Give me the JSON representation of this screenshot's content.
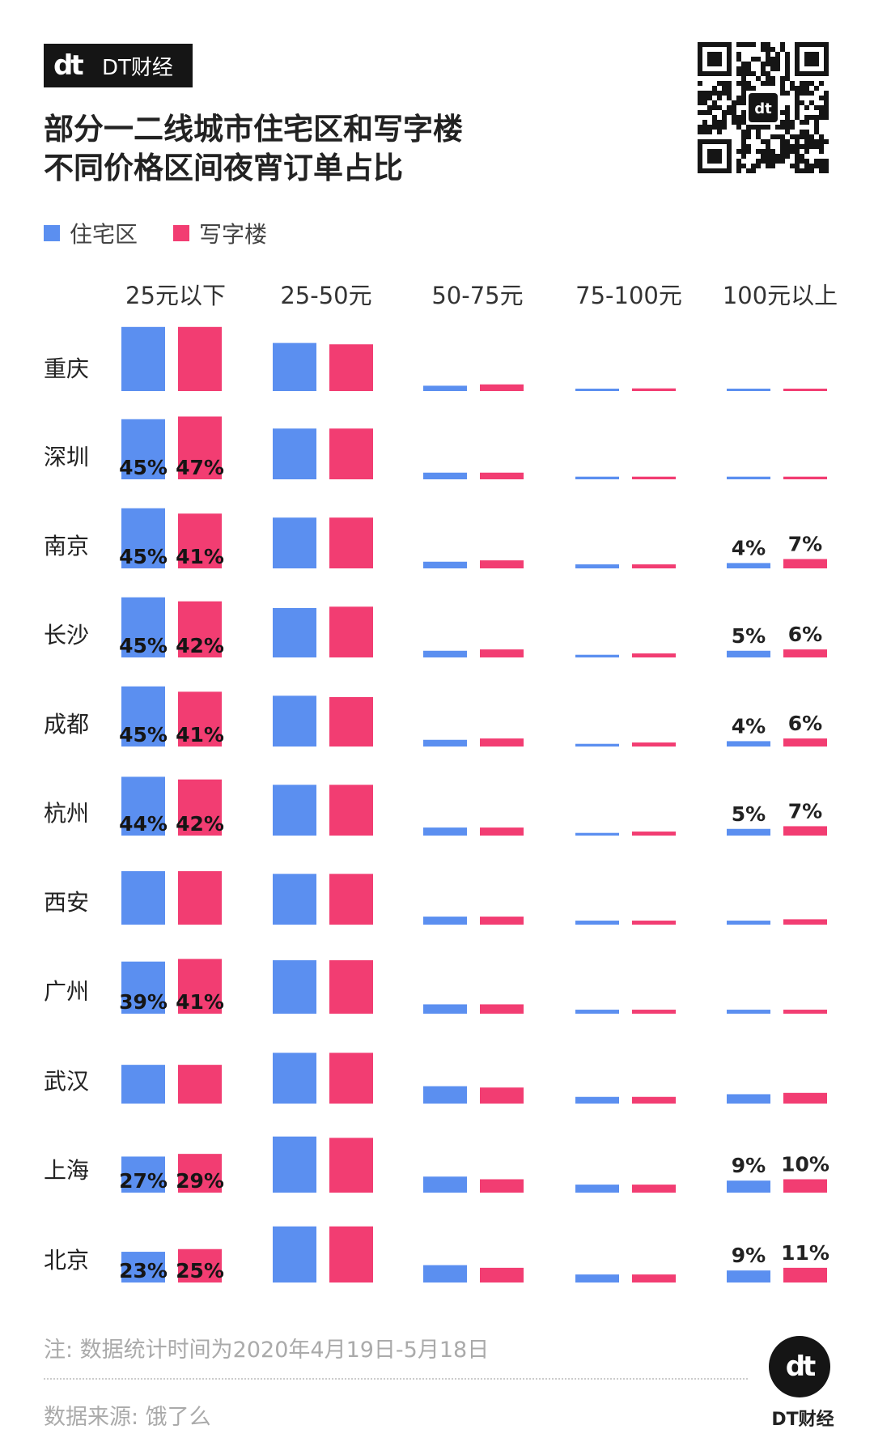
{
  "brand": {
    "logo_text": "dt",
    "name": "DT财经"
  },
  "title_lines": [
    "部分一二线城市住宅区和写字楼",
    "不同价格区间夜宵订单占比"
  ],
  "legend": [
    {
      "label": "住宅区",
      "color": "#5b8ff0"
    },
    {
      "label": "写字楼",
      "color": "#f23d72"
    }
  ],
  "qr_center_text": "dt",
  "note": "注: 数据统计时间为2020年4月19日-5月18日",
  "source": "数据来源: 饿了么",
  "footer_brand": "DT财经",
  "chart_data": {
    "type": "bar",
    "title": "部分一二线城市住宅区和写字楼不同价格区间夜宵订单占比",
    "columns": [
      "25元以下",
      "25-50元",
      "50-75元",
      "75-100元",
      "100元以上"
    ],
    "series_names": [
      "住宅区",
      "写字楼"
    ],
    "colors": [
      "#5b8ff0",
      "#f23d72"
    ],
    "unit": "%",
    "rows": [
      {
        "city": "重庆",
        "values": [
          [
            48,
            48
          ],
          [
            36,
            35
          ],
          [
            4,
            5
          ],
          [
            1.5,
            2
          ],
          [
            1,
            1.5
          ]
        ],
        "labels": [
          [
            "",
            ""
          ],
          [
            "",
            ""
          ],
          [
            "",
            ""
          ],
          [
            "",
            ""
          ],
          [
            "",
            ""
          ]
        ]
      },
      {
        "city": "深圳",
        "values": [
          [
            45,
            47
          ],
          [
            38,
            38
          ],
          [
            5,
            5
          ],
          [
            2,
            2
          ],
          [
            2,
            2
          ]
        ],
        "labels": [
          [
            "45%",
            "47%"
          ],
          [
            "",
            ""
          ],
          [
            "",
            ""
          ],
          [
            "",
            ""
          ],
          [
            "",
            ""
          ]
        ]
      },
      {
        "city": "南京",
        "values": [
          [
            45,
            41
          ],
          [
            38,
            38
          ],
          [
            5,
            6
          ],
          [
            3,
            3
          ],
          [
            4,
            7
          ]
        ],
        "labels": [
          [
            "45%",
            "41%"
          ],
          [
            "",
            ""
          ],
          [
            "",
            ""
          ],
          [
            "",
            ""
          ],
          [
            "4%",
            "7%"
          ]
        ]
      },
      {
        "city": "长沙",
        "values": [
          [
            45,
            42
          ],
          [
            37,
            38
          ],
          [
            5,
            6
          ],
          [
            2,
            3
          ],
          [
            5,
            6
          ]
        ],
        "labels": [
          [
            "45%",
            "42%"
          ],
          [
            "",
            ""
          ],
          [
            "",
            ""
          ],
          [
            "",
            ""
          ],
          [
            "5%",
            "6%"
          ]
        ]
      },
      {
        "city": "成都",
        "values": [
          [
            45,
            41
          ],
          [
            38,
            37
          ],
          [
            5,
            6
          ],
          [
            2,
            3
          ],
          [
            4,
            6
          ]
        ],
        "labels": [
          [
            "45%",
            "41%"
          ],
          [
            "",
            ""
          ],
          [
            "",
            ""
          ],
          [
            "",
            ""
          ],
          [
            "4%",
            "6%"
          ]
        ]
      },
      {
        "city": "杭州",
        "values": [
          [
            44,
            42
          ],
          [
            38,
            38
          ],
          [
            6,
            6
          ],
          [
            2,
            3
          ],
          [
            5,
            7
          ]
        ],
        "labels": [
          [
            "44%",
            "42%"
          ],
          [
            "",
            ""
          ],
          [
            "",
            ""
          ],
          [
            "",
            ""
          ],
          [
            "5%",
            "7%"
          ]
        ]
      },
      {
        "city": "西安",
        "values": [
          [
            40,
            40
          ],
          [
            38,
            38
          ],
          [
            6,
            6
          ],
          [
            3,
            3
          ],
          [
            3,
            4
          ]
        ],
        "labels": [
          [
            "",
            ""
          ],
          [
            "",
            ""
          ],
          [
            "",
            ""
          ],
          [
            "",
            ""
          ],
          [
            "",
            ""
          ]
        ]
      },
      {
        "city": "广州",
        "values": [
          [
            39,
            41
          ],
          [
            40,
            40
          ],
          [
            7,
            7
          ],
          [
            3,
            3
          ],
          [
            3,
            3
          ]
        ],
        "labels": [
          [
            "39%",
            "41%"
          ],
          [
            "",
            ""
          ],
          [
            "",
            ""
          ],
          [
            "",
            ""
          ],
          [
            "",
            ""
          ]
        ]
      },
      {
        "city": "武汉",
        "values": [
          [
            29,
            29
          ],
          [
            38,
            38
          ],
          [
            13,
            12
          ],
          [
            5,
            5
          ],
          [
            7,
            8
          ]
        ],
        "labels": [
          [
            "",
            ""
          ],
          [
            "",
            ""
          ],
          [
            "",
            ""
          ],
          [
            "",
            ""
          ],
          [
            "",
            ""
          ]
        ]
      },
      {
        "city": "上海",
        "values": [
          [
            27,
            29
          ],
          [
            42,
            41
          ],
          [
            12,
            10
          ],
          [
            6,
            6
          ],
          [
            9,
            10
          ]
        ],
        "labels": [
          [
            "27%",
            "29%"
          ],
          [
            "",
            ""
          ],
          [
            "",
            ""
          ],
          [
            "",
            ""
          ],
          [
            "9%",
            "10%"
          ]
        ]
      },
      {
        "city": "北京",
        "values": [
          [
            23,
            25
          ],
          [
            42,
            42
          ],
          [
            13,
            11
          ],
          [
            6,
            6
          ],
          [
            9,
            11
          ]
        ],
        "labels": [
          [
            "23%",
            "25%"
          ],
          [
            "",
            ""
          ],
          [
            "",
            ""
          ],
          [
            "",
            ""
          ],
          [
            "9%",
            "11%"
          ]
        ]
      }
    ]
  }
}
